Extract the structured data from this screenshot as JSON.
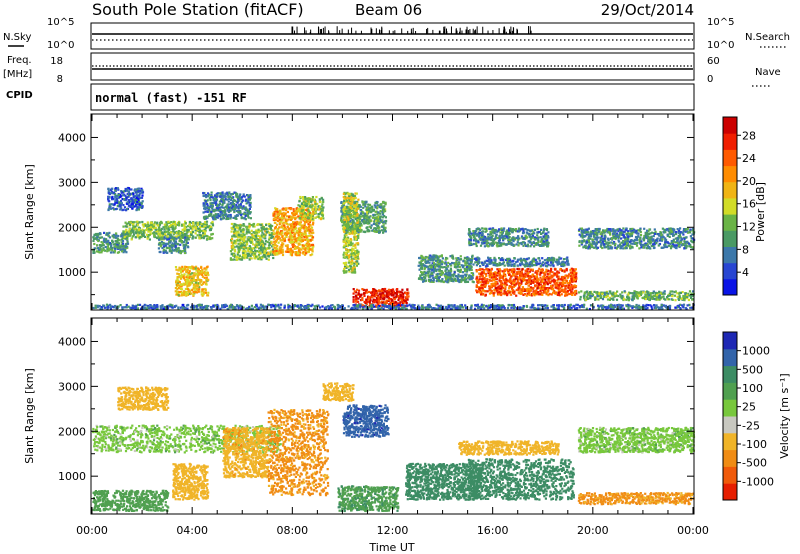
{
  "header": {
    "station": "South Pole Station (fitACF)",
    "beam": "Beam 06",
    "date": "29/Oct/2014"
  },
  "strip": {
    "nsky_label": "N.Sky",
    "nsky_ticks": [
      "10^5",
      "10^0"
    ],
    "nsearch_label": "N.Search",
    "nsearch_ticks": [
      "10^5",
      "10^0"
    ],
    "freq_label": "Freq.",
    "freq_unit": "[MHz]",
    "freq_ticks": [
      "18",
      "8"
    ],
    "nave_label": "Nave",
    "nave_ticks": [
      "60",
      "0"
    ],
    "cpid_label": "CPID",
    "cpid_text": "normal (fast) -151 RF"
  },
  "chart_data": [
    {
      "type": "heatmap",
      "title": "",
      "xlabel": "",
      "ylabel": "Slant Range [km]",
      "x_ticks": [
        "00:00",
        "04:00",
        "08:00",
        "12:00",
        "16:00",
        "20:00",
        "00:00"
      ],
      "xlim_hours": [
        0,
        24
      ],
      "ylim": [
        180,
        4500
      ],
      "y_ticks": [
        1000,
        2000,
        3000,
        4000
      ],
      "colorbar": {
        "label": "Power [dB]",
        "ticks": [
          4,
          8,
          12,
          16,
          20,
          24,
          28
        ],
        "colors": [
          "#0a14e6",
          "#2846d2",
          "#3c78aa",
          "#4a9a64",
          "#6ab446",
          "#d2dc28",
          "#f0b414",
          "#ff8c00",
          "#ff5a00",
          "#f01e00",
          "#cc0000"
        ]
      },
      "regions": [
        {
          "x0": 0.0,
          "x1": 1.4,
          "y0": 1450,
          "y1": 1900,
          "value": 10
        },
        {
          "x0": 0.6,
          "x1": 2.0,
          "y0": 2400,
          "y1": 2900,
          "value": 6
        },
        {
          "x0": 1.2,
          "x1": 4.8,
          "y0": 1750,
          "y1": 2150,
          "value": 13
        },
        {
          "x0": 2.6,
          "x1": 3.8,
          "y0": 1450,
          "y1": 1800,
          "value": 9
        },
        {
          "x0": 3.3,
          "x1": 4.6,
          "y0": 500,
          "y1": 1150,
          "value": 18
        },
        {
          "x0": 4.4,
          "x1": 6.3,
          "y0": 2200,
          "y1": 2800,
          "value": 8
        },
        {
          "x0": 5.5,
          "x1": 7.2,
          "y0": 1300,
          "y1": 2100,
          "value": 14
        },
        {
          "x0": 7.2,
          "x1": 8.8,
          "y0": 1400,
          "y1": 2450,
          "value": 20
        },
        {
          "x0": 8.2,
          "x1": 9.2,
          "y0": 2200,
          "y1": 2700,
          "value": 14
        },
        {
          "x0": 9.9,
          "x1": 11.7,
          "y0": 1900,
          "y1": 2600,
          "value": 11
        },
        {
          "x0": 10.0,
          "x1": 10.6,
          "y0": 1000,
          "y1": 2800,
          "value": 15
        },
        {
          "x0": 10.4,
          "x1": 12.6,
          "y0": 250,
          "y1": 650,
          "value": 28
        },
        {
          "x0": 13.0,
          "x1": 15.2,
          "y0": 800,
          "y1": 1400,
          "value": 10
        },
        {
          "x0": 15.0,
          "x1": 18.2,
          "y0": 1600,
          "y1": 2000,
          "value": 9
        },
        {
          "x0": 15.3,
          "x1": 19.3,
          "y0": 500,
          "y1": 1100,
          "value": 25
        },
        {
          "x0": 15.2,
          "x1": 19.0,
          "y0": 1150,
          "y1": 1350,
          "value": 8
        },
        {
          "x0": 19.4,
          "x1": 24.0,
          "y0": 1550,
          "y1": 2000,
          "value": 9
        },
        {
          "x0": 19.4,
          "x1": 24.0,
          "y0": 400,
          "y1": 600,
          "value": 12
        },
        {
          "x0": 0.0,
          "x1": 24.0,
          "y0": 200,
          "y1": 300,
          "value": 7
        }
      ]
    },
    {
      "type": "heatmap",
      "title": "",
      "xlabel": "Time UT",
      "ylabel": "Slant Range [km]",
      "x_ticks": [
        "00:00",
        "04:00",
        "08:00",
        "12:00",
        "16:00",
        "20:00",
        "00:00"
      ],
      "xlim_hours": [
        0,
        24
      ],
      "ylim": [
        180,
        4500
      ],
      "y_ticks": [
        1000,
        2000,
        3000,
        4000
      ],
      "colorbar": {
        "label": "Velocity [m s⁻¹]",
        "ticks": [
          "1000",
          "500",
          "100",
          "25",
          "-25",
          "-100",
          "-500",
          "-1000"
        ],
        "colors": [
          "#1e28b4",
          "#3264aa",
          "#3c8c64",
          "#50a050",
          "#78c83c",
          "#c8c8c0",
          "#f0b428",
          "#f08c14",
          "#f05a0a",
          "#e61e00"
        ]
      },
      "regions": [
        {
          "x0": 0.0,
          "x1": 7.5,
          "y0": 1550,
          "y1": 2150,
          "value": 0
        },
        {
          "x0": 1.0,
          "x1": 3.0,
          "y0": 2500,
          "y1": 3000,
          "value": -150
        },
        {
          "x0": 3.2,
          "x1": 4.6,
          "y0": 500,
          "y1": 1300,
          "value": -300
        },
        {
          "x0": 5.2,
          "x1": 7.0,
          "y0": 1000,
          "y1": 2100,
          "value": -400
        },
        {
          "x0": 7.0,
          "x1": 9.4,
          "y0": 600,
          "y1": 2500,
          "value": -600
        },
        {
          "x0": 9.2,
          "x1": 10.4,
          "y0": 2700,
          "y1": 3100,
          "value": -150
        },
        {
          "x0": 10.0,
          "x1": 11.8,
          "y0": 1900,
          "y1": 2600,
          "value": 800
        },
        {
          "x0": 9.8,
          "x1": 12.2,
          "y0": 250,
          "y1": 800,
          "value": 80
        },
        {
          "x0": 12.5,
          "x1": 15.5,
          "y0": 500,
          "y1": 1300,
          "value": 300
        },
        {
          "x0": 15.0,
          "x1": 19.2,
          "y0": 500,
          "y1": 1400,
          "value": 200
        },
        {
          "x0": 14.6,
          "x1": 18.6,
          "y0": 1500,
          "y1": 1800,
          "value": -150
        },
        {
          "x0": 19.4,
          "x1": 24.0,
          "y0": 1550,
          "y1": 2100,
          "value": 0
        },
        {
          "x0": 19.4,
          "x1": 24.0,
          "y0": 400,
          "y1": 650,
          "value": -600
        },
        {
          "x0": 0.0,
          "x1": 3.0,
          "y0": 250,
          "y1": 700,
          "value": 60
        }
      ]
    }
  ]
}
